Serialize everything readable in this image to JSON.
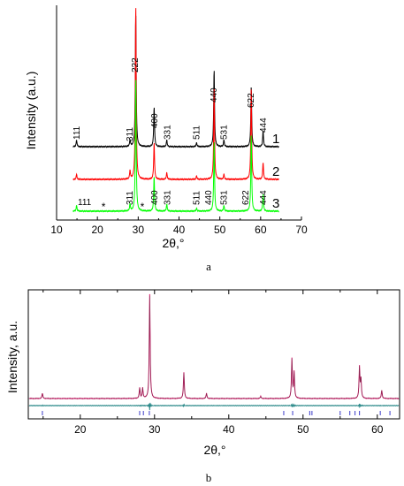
{
  "panels": [
    {
      "label": "a"
    },
    {
      "label": "b"
    }
  ],
  "chart_data": [
    {
      "type": "line",
      "panel": "a",
      "xlabel": "2θ,°",
      "ylabel": "Intensity (a.u.)",
      "xlim": [
        10,
        70
      ],
      "xticks": [
        10,
        20,
        30,
        40,
        50,
        60,
        70
      ],
      "y_ticks_shown": false,
      "grid": false,
      "series": [
        {
          "name": "1",
          "color": "#000000",
          "offset": 1.2,
          "peaks": [
            [
              14.9,
              0.05
            ],
            [
              28.0,
              0.05
            ],
            [
              29.4,
              1.0
            ],
            [
              33.9,
              0.3
            ],
            [
              37.0,
              0.05
            ],
            [
              44.3,
              0.03
            ],
            [
              48.6,
              0.58
            ],
            [
              51.0,
              0.05
            ],
            [
              57.7,
              0.45
            ],
            [
              60.6,
              0.12
            ]
          ]
        },
        {
          "name": "2",
          "color": "#ff0000",
          "offset": 0.6,
          "peaks": [
            [
              14.9,
              0.03
            ],
            [
              28.0,
              0.05
            ],
            [
              29.4,
              1.05
            ],
            [
              33.9,
              0.22
            ],
            [
              37.0,
              0.04
            ],
            [
              44.3,
              0.02
            ],
            [
              48.6,
              0.55
            ],
            [
              51.0,
              0.03
            ],
            [
              57.7,
              0.55
            ],
            [
              60.6,
              0.1
            ]
          ]
        },
        {
          "name": "3",
          "color": "#00ff00",
          "offset": 0.0,
          "peaks": [
            [
              14.9,
              0.04
            ],
            [
              28.0,
              0.05
            ],
            [
              29.4,
              0.95
            ],
            [
              33.9,
              0.25
            ],
            [
              37.0,
              0.05
            ],
            [
              44.3,
              0.02
            ],
            [
              48.6,
              0.5
            ],
            [
              51.0,
              0.04
            ],
            [
              57.7,
              0.55
            ],
            [
              60.6,
              0.12
            ]
          ]
        }
      ],
      "peak_labels_top": [
        {
          "text": "111",
          "x": 15.0
        },
        {
          "text": "311",
          "x": 28.0
        },
        {
          "text": "222",
          "x": 29.3
        },
        {
          "text": "400",
          "x": 34.0
        },
        {
          "text": "331",
          "x": 37.2
        },
        {
          "text": "511",
          "x": 44.3
        },
        {
          "text": "440",
          "x": 48.6
        },
        {
          "text": "531",
          "x": 51.0
        },
        {
          "text": "622",
          "x": 57.6
        },
        {
          "text": "444",
          "x": 60.7
        }
      ],
      "peak_labels_bottom": [
        {
          "text": "111",
          "x": 15.0
        },
        {
          "text": "311",
          "x": 28.0
        },
        {
          "text": "400",
          "x": 34.0
        },
        {
          "text": "331",
          "x": 37.2
        },
        {
          "text": "511",
          "x": 44.3
        },
        {
          "text": "440",
          "x": 48.6
        },
        {
          "text": "531",
          "x": 51.0
        },
        {
          "text": "622",
          "x": 57.6
        },
        {
          "text": "444",
          "x": 60.7
        }
      ],
      "annotations": [
        {
          "text": "*",
          "x": 21.5
        },
        {
          "text": "*",
          "x": 31.0
        }
      ]
    },
    {
      "type": "line",
      "panel": "b",
      "xlabel": "2θ,°",
      "ylabel": "Intensity, a.u.",
      "xlim": [
        13,
        63
      ],
      "xticks": [
        20,
        30,
        40,
        50,
        60
      ],
      "y_ticks_shown": false,
      "grid": false,
      "series": [
        {
          "name": "",
          "role": "observed",
          "color": "#e0116a",
          "peaks": [
            [
              14.9,
              0.05
            ],
            [
              28.0,
              0.1
            ],
            [
              28.4,
              0.1
            ],
            [
              29.35,
              1.0
            ],
            [
              33.95,
              0.25
            ],
            [
              37.0,
              0.05
            ],
            [
              44.3,
              0.02
            ],
            [
              48.5,
              0.38
            ],
            [
              48.8,
              0.25
            ],
            [
              57.6,
              0.3
            ],
            [
              57.8,
              0.18
            ],
            [
              60.6,
              0.08
            ]
          ]
        },
        {
          "name": "",
          "role": "difference",
          "color": "#2e8b8b"
        },
        {
          "name": "",
          "role": "reflection markers",
          "color": "#3b3bc8",
          "x": [
            14.9,
            28.0,
            28.5,
            29.3,
            47.4,
            48.6,
            50.9,
            51.2,
            55.0,
            56.3,
            57.0,
            57.6,
            60.4,
            61.7
          ]
        }
      ]
    }
  ]
}
